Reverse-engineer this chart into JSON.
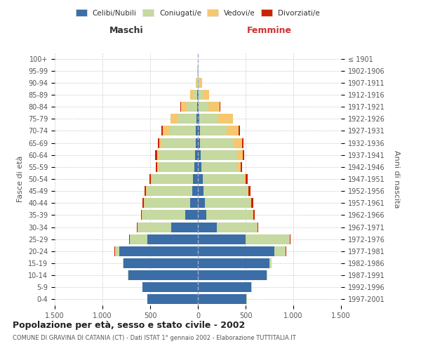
{
  "age_groups": [
    "0-4",
    "5-9",
    "10-14",
    "15-19",
    "20-24",
    "25-29",
    "30-34",
    "35-39",
    "40-44",
    "45-49",
    "50-54",
    "55-59",
    "60-64",
    "65-69",
    "70-74",
    "75-79",
    "80-84",
    "85-89",
    "90-94",
    "95-99",
    "100+"
  ],
  "birth_years": [
    "1997-2001",
    "1992-1996",
    "1987-1991",
    "1982-1986",
    "1977-1981",
    "1972-1976",
    "1967-1971",
    "1962-1966",
    "1957-1961",
    "1952-1956",
    "1947-1951",
    "1942-1946",
    "1937-1941",
    "1932-1936",
    "1927-1931",
    "1922-1926",
    "1917-1921",
    "1912-1916",
    "1907-1911",
    "1902-1906",
    "≤ 1901"
  ],
  "male": {
    "celibe": [
      530,
      580,
      730,
      780,
      820,
      530,
      280,
      130,
      80,
      60,
      55,
      35,
      30,
      25,
      20,
      15,
      10,
      5,
      2,
      0,
      0
    ],
    "coniugato": [
      1,
      2,
      5,
      10,
      50,
      180,
      350,
      450,
      480,
      480,
      430,
      380,
      380,
      350,
      280,
      200,
      110,
      50,
      15,
      5,
      2
    ],
    "vedovo": [
      0,
      0,
      0,
      0,
      1,
      2,
      2,
      5,
      5,
      5,
      5,
      10,
      20,
      30,
      70,
      70,
      60,
      25,
      8,
      2,
      0
    ],
    "divorziato": [
      0,
      0,
      0,
      0,
      2,
      5,
      8,
      10,
      15,
      15,
      20,
      15,
      15,
      15,
      10,
      5,
      2,
      2,
      0,
      0,
      0
    ]
  },
  "female": {
    "nubile": [
      510,
      560,
      720,
      750,
      800,
      500,
      200,
      90,
      70,
      60,
      55,
      35,
      30,
      25,
      20,
      15,
      10,
      5,
      2,
      0,
      0
    ],
    "coniugata": [
      2,
      3,
      8,
      20,
      120,
      460,
      420,
      480,
      480,
      460,
      430,
      380,
      380,
      350,
      280,
      200,
      100,
      50,
      20,
      5,
      2
    ],
    "vedova": [
      0,
      0,
      0,
      1,
      2,
      5,
      5,
      8,
      8,
      10,
      15,
      30,
      60,
      90,
      130,
      150,
      120,
      60,
      20,
      5,
      0
    ],
    "divorziata": [
      0,
      0,
      0,
      1,
      3,
      5,
      10,
      15,
      20,
      20,
      25,
      15,
      15,
      15,
      10,
      5,
      3,
      2,
      0,
      0,
      0
    ]
  },
  "colors": {
    "celibe": "#3b6ea6",
    "coniugato": "#c5d9a0",
    "vedovo": "#f5c76e",
    "divorziato": "#cc2200"
  },
  "legend_labels": [
    "Celibi/Nubili",
    "Coniugati/e",
    "Vedovi/e",
    "Divorziati/e"
  ],
  "title": "Popolazione per età, sesso e stato civile - 2002",
  "subtitle": "COMUNE DI GRAVINA DI CATANIA (CT) - Dati ISTAT 1° gennaio 2002 - Elaborazione TUTTITALIA.IT",
  "label_maschi": "Maschi",
  "label_femmine": "Femmine",
  "ylabel_left": "Fasce di età",
  "ylabel_right": "Anni di nascita",
  "xlim": 1500,
  "xtick_vals": [
    -1500,
    -1000,
    -500,
    0,
    500,
    1000,
    1500
  ],
  "xtick_labels": [
    "1.500",
    "1.000",
    "500",
    "0",
    "500",
    "1.000",
    "1.500"
  ],
  "background_color": "#ffffff",
  "grid_color": "#cccccc"
}
